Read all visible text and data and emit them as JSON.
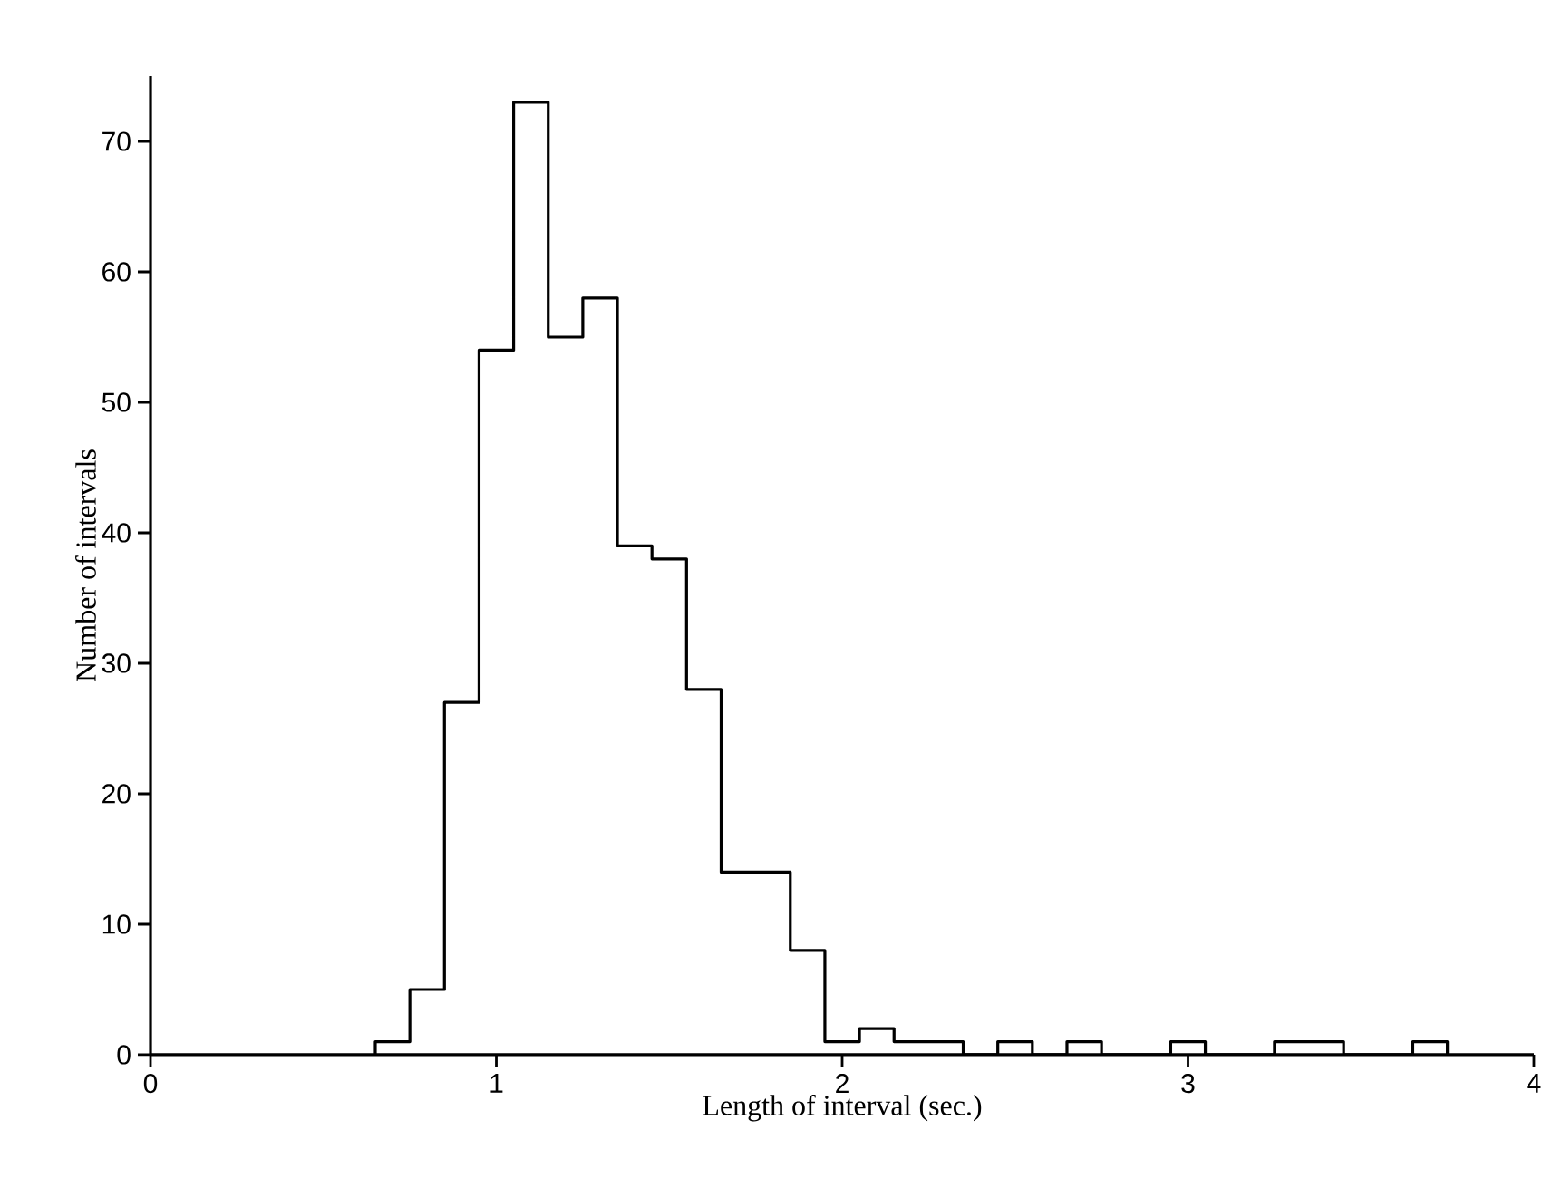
{
  "chart_data": {
    "type": "histogram",
    "xlabel": "Length of interval (sec.)",
    "ylabel": "Number of intervals",
    "bins": [
      0.65,
      0.75,
      0.85,
      0.95,
      1.05,
      1.15,
      1.25,
      1.35,
      1.45,
      1.55,
      1.65,
      1.75,
      1.85,
      1.95,
      2.05,
      2.15,
      2.25,
      2.35,
      2.45,
      2.55,
      2.65,
      2.75,
      2.85,
      2.95,
      3.05,
      3.15,
      3.25,
      3.35,
      3.45,
      3.55,
      3.65,
      3.75
    ],
    "values": [
      1,
      5,
      27,
      54,
      73,
      55,
      58,
      39,
      38,
      28,
      14,
      14,
      8,
      1,
      2,
      1,
      1,
      0,
      1,
      0,
      1,
      0,
      0,
      1,
      0,
      0,
      1,
      1,
      0,
      0,
      1
    ],
    "color": "#000000",
    "xlim": [
      0,
      4
    ],
    "xticks": [
      0,
      1,
      2,
      3,
      4
    ],
    "ylim": [
      0,
      75
    ],
    "yticks": [
      0,
      10,
      20,
      30,
      40,
      50,
      60,
      70
    ]
  }
}
